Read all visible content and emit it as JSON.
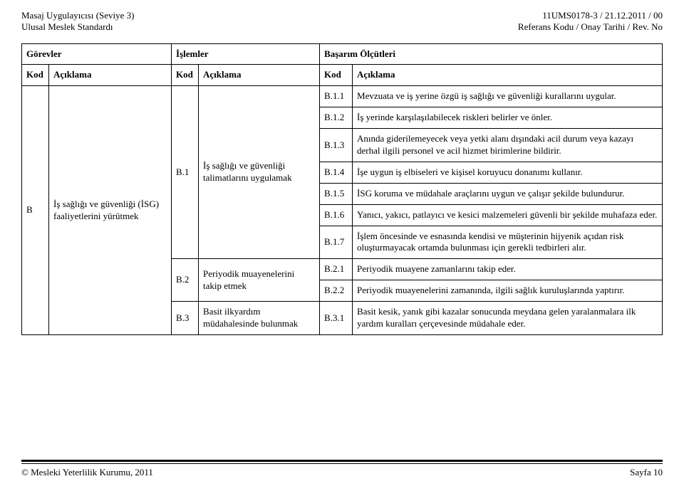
{
  "header": {
    "left_line1": "Masaj Uygulayıcısı (Seviye 3)",
    "left_line2": "Ulusal Meslek Standardı",
    "right_line1": "11UMS0178-3 / 21.12.2011 / 00",
    "right_line2": "Referans Kodu / Onay Tarihi / Rev. No"
  },
  "columns": {
    "gorevler": "Görevler",
    "islemler": "İşlemler",
    "basarim": "Başarım Ölçütleri",
    "kod": "Kod",
    "aciklama": "Açıklama"
  },
  "body": {
    "gorev_kod": "B",
    "gorev_aciklama": "İş sağlığı ve güvenliği (İSG) faaliyetlerini yürütmek",
    "islemler": {
      "b1": {
        "kod": "B.1",
        "aciklama": "İş sağlığı ve güvenliği talimatlarını uygulamak"
      },
      "b2": {
        "kod": "B.2",
        "aciklama": "Periyodik muayenelerini takip etmek"
      },
      "b3": {
        "kod": "B.3",
        "aciklama": "Basit ilkyardım müdahalesinde bulunmak"
      }
    },
    "olcutler": {
      "b11": {
        "kod": "B.1.1",
        "text": "Mevzuata ve iş yerine özgü iş sağlığı ve güvenliği kurallarını uygular."
      },
      "b12": {
        "kod": "B.1.2",
        "text": "İş yerinde karşılaşılabilecek riskleri belirler ve önler."
      },
      "b13": {
        "kod": "B.1.3",
        "text": "Anında giderilemeyecek veya yetki alanı dışındaki acil durum veya kazayı derhal ilgili personel ve acil hizmet birimlerine bildirir."
      },
      "b14": {
        "kod": "B.1.4",
        "text": "İşe uygun iş elbiseleri ve kişisel koruyucu donanımı kullanır."
      },
      "b15": {
        "kod": "B.1.5",
        "text": "İSG koruma ve müdahale araçlarını uygun ve çalışır şekilde bulundurur."
      },
      "b16": {
        "kod": "B.1.6",
        "text": "Yanıcı, yakıcı, patlayıcı ve kesici malzemeleri güvenli bir şekilde muhafaza eder."
      },
      "b17": {
        "kod": "B.1.7",
        "text": "İşlem öncesinde ve esnasında kendisi ve müşterinin hijyenik açıdan risk oluşturmayacak ortamda bulunması için gerekli tedbirleri alır."
      },
      "b21": {
        "kod": "B.2.1",
        "text": "Periyodik muayene zamanlarını takip eder."
      },
      "b22": {
        "kod": "B.2.2",
        "text": "Periyodik muayenelerini zamanında,  ilgili sağlık kuruluşlarında yaptırır."
      },
      "b31": {
        "kod": "B.3.1",
        "text": "Basit kesik, yanık gibi kazalar sonucunda meydana gelen yaralanmalara ilk yardım kuralları çerçevesinde müdahale eder."
      }
    }
  },
  "footer": {
    "left": "© Mesleki Yeterlilik Kurumu, 2011",
    "right": "Sayfa 10"
  }
}
